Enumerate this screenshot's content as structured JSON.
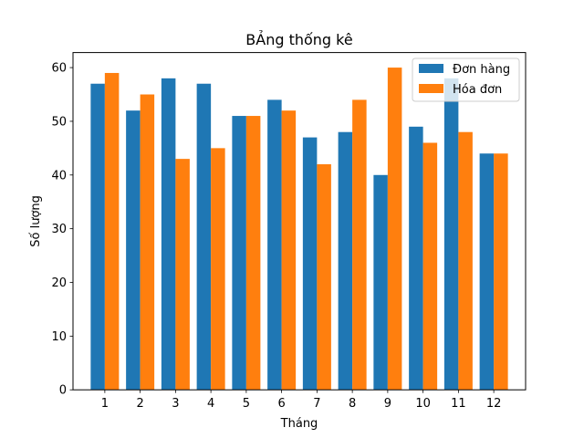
{
  "chart_data": {
    "type": "bar",
    "title": "BẢng thống kê",
    "xlabel": "Tháng",
    "ylabel": "Số lượng",
    "categories": [
      "1",
      "2",
      "3",
      "4",
      "5",
      "6",
      "7",
      "8",
      "9",
      "10",
      "11",
      "12"
    ],
    "series": [
      {
        "name": "Đơn hàng",
        "values": [
          57,
          52,
          58,
          57,
          51,
          54,
          47,
          48,
          40,
          49,
          58,
          44
        ]
      },
      {
        "name": "Hóa đơn",
        "values": [
          59,
          55,
          43,
          45,
          51,
          52,
          42,
          54,
          60,
          46,
          48,
          44
        ]
      }
    ],
    "ylim": [
      0,
      62.8
    ],
    "yticks": [
      "0",
      "10",
      "20",
      "30",
      "40",
      "50",
      "60"
    ],
    "legend_position": "top-right",
    "grid": false
  },
  "colors": {
    "series": [
      "#1f77b4",
      "#ff7f0e"
    ],
    "axis": "#000000",
    "background": "#ffffff"
  }
}
